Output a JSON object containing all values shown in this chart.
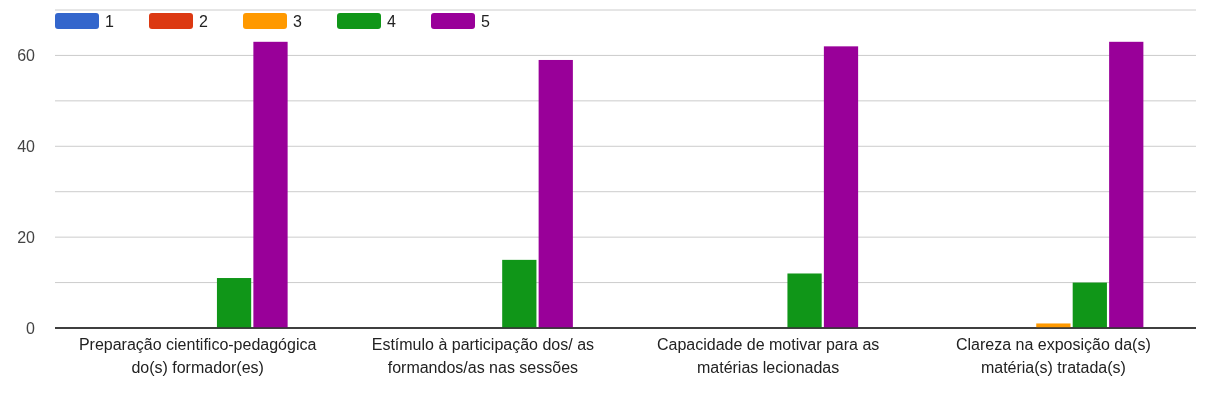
{
  "chart_data": {
    "type": "bar",
    "categories": [
      "Preparação cientifico-pedagógica do(s) formador(es)",
      "Estímulo à participação dos/ as formandos/as nas sessões",
      "Capacidade de motivar para as matérias lecionadas",
      "Clareza na exposição da(s) matéria(s) tratada(s)"
    ],
    "series": [
      {
        "name": "1",
        "color": "#3366cc",
        "values": [
          0,
          0,
          0,
          0
        ]
      },
      {
        "name": "2",
        "color": "#dc3912",
        "values": [
          0,
          0,
          0,
          0
        ]
      },
      {
        "name": "3",
        "color": "#ff9900",
        "values": [
          0,
          0,
          0,
          1
        ]
      },
      {
        "name": "4",
        "color": "#109618",
        "values": [
          11,
          15,
          12,
          10
        ]
      },
      {
        "name": "5",
        "color": "#990099",
        "values": [
          63,
          59,
          62,
          63
        ]
      }
    ],
    "ylim": [
      0,
      70
    ],
    "yticks": [
      0,
      {
        "value": 10,
        "label": null
      },
      20,
      {
        "value": 30,
        "label": null
      },
      40,
      {
        "value": 50,
        "label": null
      },
      60,
      {
        "value": 70,
        "label": null
      }
    ],
    "grid": "y",
    "legend": "top left"
  }
}
